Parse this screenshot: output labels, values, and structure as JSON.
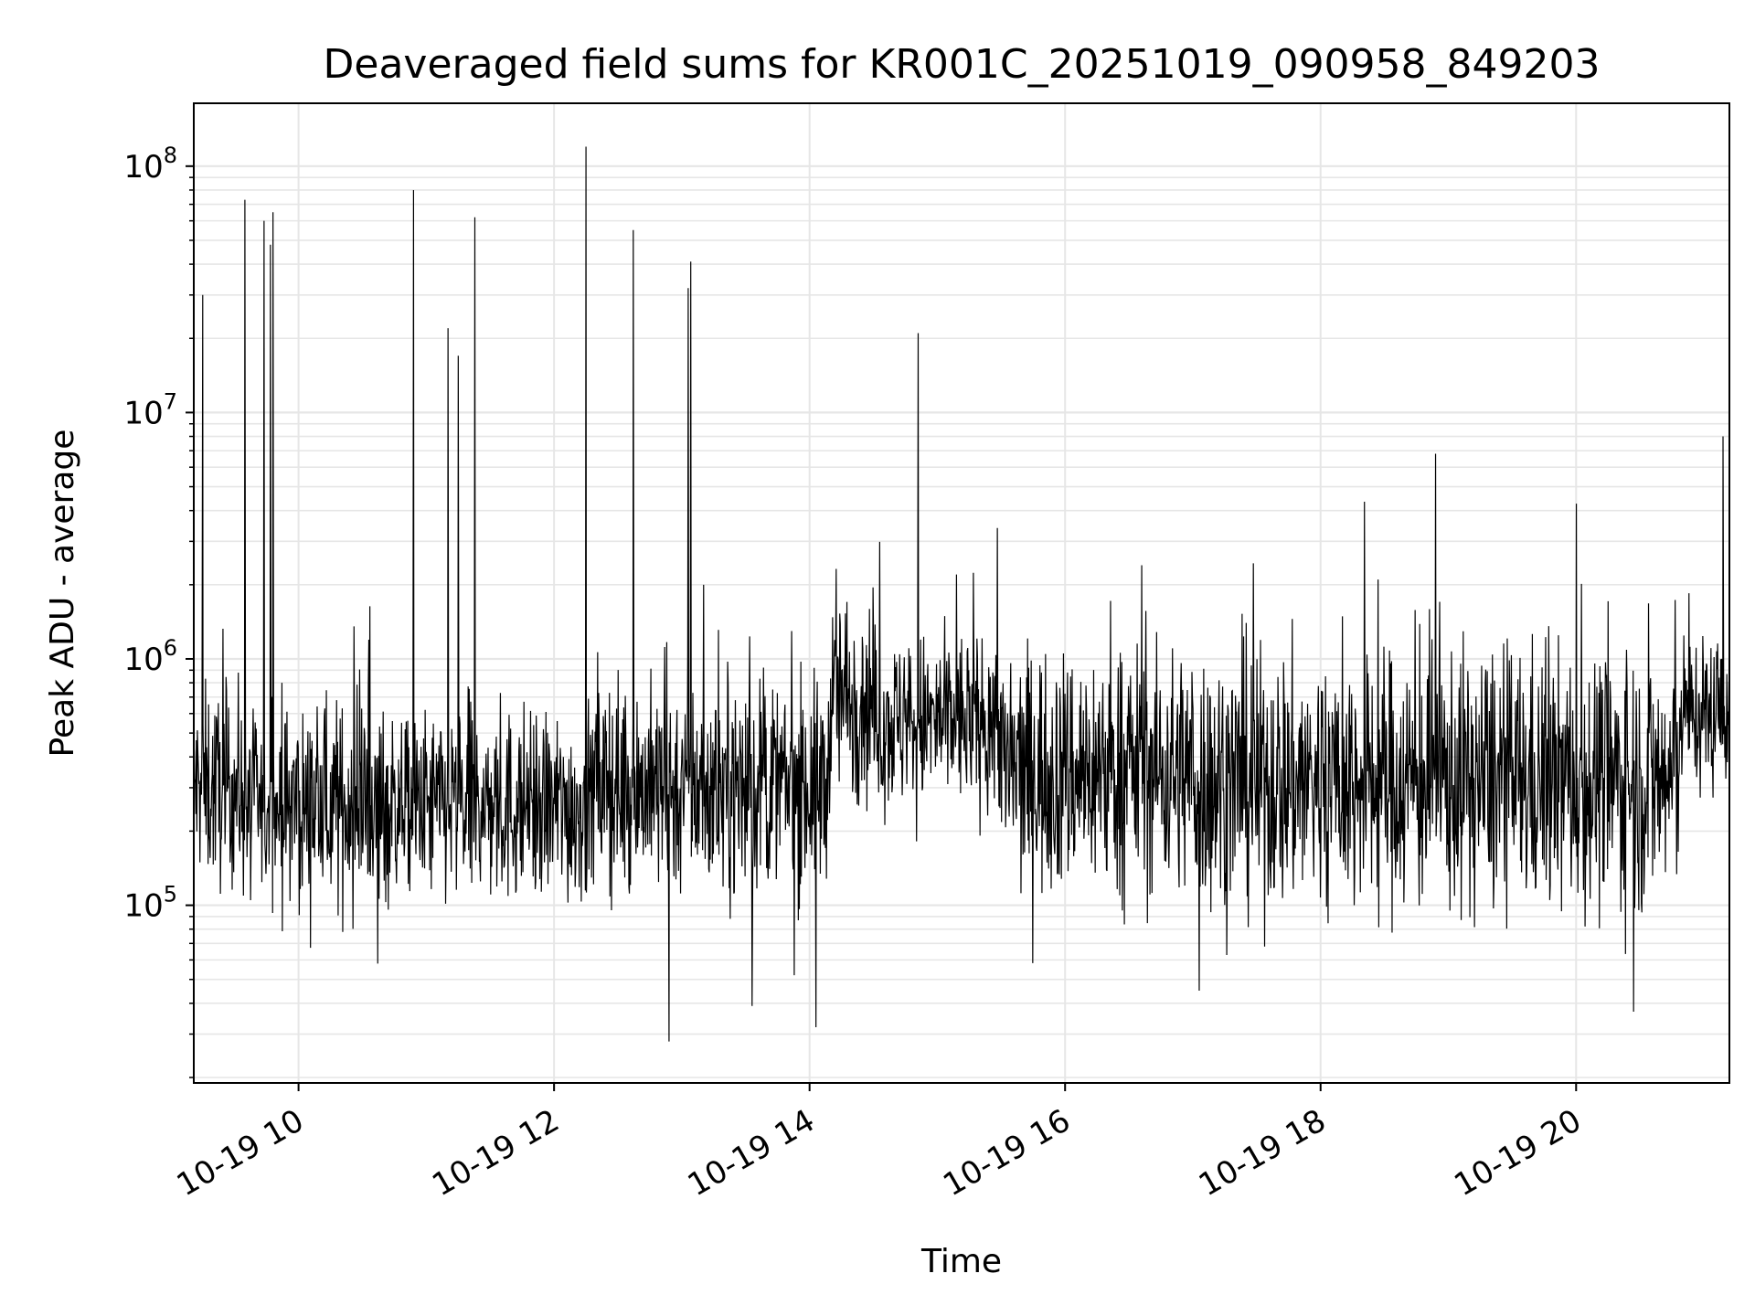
{
  "chart_data": {
    "type": "line",
    "title": "Deaveraged field sums for KR001C_20251019_090958_849203",
    "xlabel": "Time",
    "ylabel": "Peak ADU - average",
    "yscale": "log",
    "ylim": [
      19000,
      180000000
    ],
    "xlim_hours": [
      9.18,
      21.2
    ],
    "grid": true,
    "x_ticks": [
      {
        "value": 10,
        "label": "10-19 10"
      },
      {
        "value": 12,
        "label": "10-19 12"
      },
      {
        "value": 14,
        "label": "10-19 14"
      },
      {
        "value": 16,
        "label": "10-19 16"
      },
      {
        "value": 18,
        "label": "10-19 18"
      },
      {
        "value": 20,
        "label": "10-19 20"
      }
    ],
    "y_ticks": [
      {
        "value": 100000,
        "base": "10",
        "exp": "5"
      },
      {
        "value": 1000000,
        "base": "10",
        "exp": "6"
      },
      {
        "value": 10000000,
        "base": "10",
        "exp": "7"
      },
      {
        "value": 100000000,
        "base": "10",
        "exp": "8"
      }
    ],
    "baseline_segments": [
      {
        "t": [
          9.18,
          9.55
        ],
        "median": 300000,
        "spread": 0.55
      },
      {
        "t": [
          9.55,
          12.3
        ],
        "median": 250000,
        "spread": 0.55
      },
      {
        "t": [
          12.3,
          14.15
        ],
        "median": 300000,
        "spread": 0.6
      },
      {
        "t": [
          14.15,
          14.5
        ],
        "median": 700000,
        "spread": 0.6
      },
      {
        "t": [
          14.5,
          15.5
        ],
        "median": 550000,
        "spread": 0.5
      },
      {
        "t": [
          15.5,
          17.0
        ],
        "median": 350000,
        "spread": 0.7
      },
      {
        "t": [
          17.0,
          20.8
        ],
        "median": 320000,
        "spread": 0.75
      },
      {
        "t": [
          20.8,
          21.2
        ],
        "median": 600000,
        "spread": 0.45
      }
    ],
    "spikes_up": [
      {
        "t": 9.25,
        "v": 30000000
      },
      {
        "t": 9.58,
        "v": 73000000
      },
      {
        "t": 9.73,
        "v": 60000000
      },
      {
        "t": 9.78,
        "v": 48000000
      },
      {
        "t": 9.87,
        "v": 800000
      },
      {
        "t": 10.9,
        "v": 80000000
      },
      {
        "t": 11.17,
        "v": 22000000
      },
      {
        "t": 11.25,
        "v": 17000000
      },
      {
        "t": 11.38,
        "v": 62000000
      },
      {
        "t": 12.25,
        "v": 120000000
      },
      {
        "t": 12.62,
        "v": 55000000
      },
      {
        "t": 13.05,
        "v": 32000000
      },
      {
        "t": 13.07,
        "v": 41000000
      },
      {
        "t": 14.85,
        "v": 21000000
      },
      {
        "t": 15.15,
        "v": 2200000
      },
      {
        "t": 15.47,
        "v": 3400000
      },
      {
        "t": 16.6,
        "v": 2400000
      },
      {
        "t": 18.45,
        "v": 2100000
      },
      {
        "t": 18.9,
        "v": 6800000
      },
      {
        "t": 21.15,
        "v": 8000000
      }
    ],
    "spikes_down": [
      {
        "t": 9.8,
        "v": 65000000
      },
      {
        "t": 12.9,
        "v": 28000
      },
      {
        "t": 13.55,
        "v": 39000
      },
      {
        "t": 13.88,
        "v": 52000
      },
      {
        "t": 14.05,
        "v": 32000
      },
      {
        "t": 17.05,
        "v": 45000
      },
      {
        "t": 20.45,
        "v": 37000
      },
      {
        "t": 10.62,
        "v": 58000
      }
    ]
  }
}
